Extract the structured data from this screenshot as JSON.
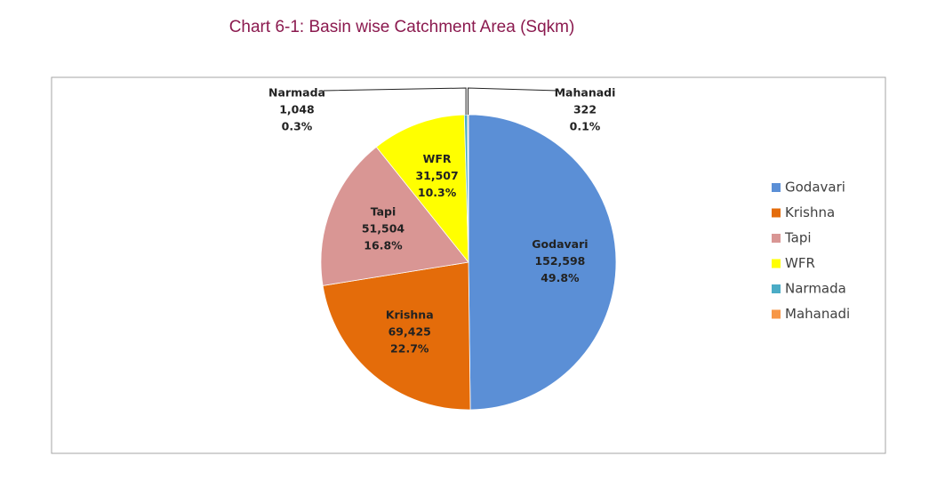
{
  "chart_data": {
    "type": "pie",
    "title": "Chart 6-1:  Basin wise Catchment Area (Sqkm)",
    "categories": [
      "Godavari",
      "Krishna",
      "Tapi",
      "WFR",
      "Narmada",
      "Mahanadi"
    ],
    "values": [
      152598,
      69425,
      51504,
      31507,
      1048,
      322
    ],
    "value_labels": [
      "152,598",
      "69,425",
      "51,504",
      "31,507",
      "1,048",
      "322"
    ],
    "percents": [
      49.8,
      22.7,
      16.8,
      10.3,
      0.3,
      0.1
    ],
    "percent_labels": [
      "49.8%",
      "22.7%",
      "16.8%",
      "10.3%",
      "0.3%",
      "0.1%"
    ],
    "colors": [
      "#5b8fd6",
      "#e46c0a",
      "#d99694",
      "#ffff00",
      "#4bacc6",
      "#f79646"
    ],
    "legend": "right"
  }
}
